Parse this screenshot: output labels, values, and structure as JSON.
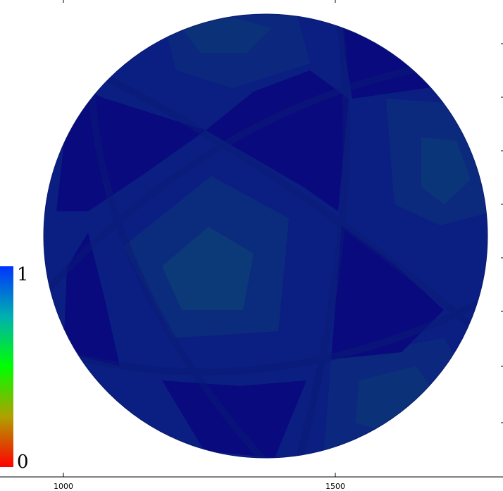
{
  "chart_data": {
    "type": "heatmap",
    "title": "",
    "xlabel": "",
    "ylabel": "",
    "x_ticks": [
      "1000",
      "1500"
    ],
    "xlim": [
      900,
      1760
    ],
    "colorbar": {
      "min_label": "0",
      "max_label": "1",
      "range": [
        0,
        1
      ],
      "colors": [
        "#ff0000",
        "#b0a000",
        "#00ff00",
        "#00b0b0",
        "#0033ff"
      ]
    },
    "sphere": {
      "base_color": "#0b1f82",
      "values_range": [
        0.0,
        0.15
      ],
      "regions": [
        {
          "name": "center-pentagon",
          "value": 0.14
        },
        {
          "name": "right-pentagon",
          "value": 0.13
        },
        {
          "name": "top-pentagon",
          "value": 0.12
        },
        {
          "name": "lower-right-pentagon",
          "value": 0.12
        },
        {
          "name": "upper-triangle",
          "value": 0.0
        },
        {
          "name": "left-triangle",
          "value": 0.0
        },
        {
          "name": "right-triangle",
          "value": 0.0
        },
        {
          "name": "bottom-triangle",
          "value": 0.0
        },
        {
          "name": "lower-left-triangle",
          "value": 0.0
        }
      ]
    }
  }
}
